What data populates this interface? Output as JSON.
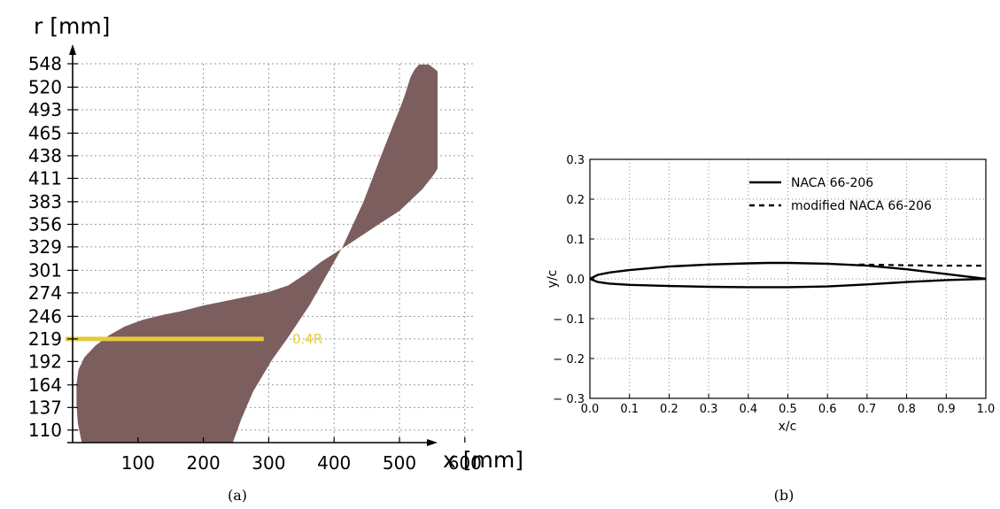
{
  "chart_data": [
    {
      "panel": "(a)",
      "type": "area",
      "xlabel": "x [mm]",
      "ylabel": "r [mm]",
      "xlim": [
        -35,
        660
      ],
      "ylim": [
        95,
        548
      ],
      "xticks": [
        100,
        200,
        300,
        400,
        500,
        600
      ],
      "yticks": [
        110,
        137,
        164,
        192,
        219,
        246,
        274,
        301,
        329,
        356,
        383,
        411,
        438,
        465,
        493,
        520,
        548
      ],
      "grid": true,
      "fill_color": "#7b5e5d",
      "highlight_color": "#e7c93c",
      "annotation": {
        "label": "0.4R",
        "r": 219,
        "x_start": 0,
        "x_end": 390
      },
      "outline": [
        [
          245,
          95
        ],
        [
          258,
          123
        ],
        [
          276,
          156
        ],
        [
          305,
          194
        ],
        [
          328,
          219
        ],
        [
          363,
          260
        ],
        [
          413,
          329
        ],
        [
          445,
          383
        ],
        [
          472,
          438
        ],
        [
          490,
          474
        ],
        [
          500,
          493
        ],
        [
          508,
          510
        ],
        [
          517,
          532
        ],
        [
          523,
          541
        ],
        [
          530,
          547
        ],
        [
          545,
          547
        ],
        [
          557,
          540
        ],
        [
          568,
          528
        ],
        [
          575,
          516
        ],
        [
          580,
          505
        ],
        [
          583,
          493
        ],
        [
          584,
          480
        ],
        [
          583,
          465
        ],
        [
          577,
          449
        ],
        [
          567,
          433
        ],
        [
          552,
          415
        ],
        [
          535,
          398
        ],
        [
          500,
          372
        ],
        [
          470,
          357
        ],
        [
          420,
          331
        ],
        [
          380,
          311
        ],
        [
          355,
          296
        ],
        [
          330,
          283
        ],
        [
          300,
          275
        ],
        [
          275,
          271
        ],
        [
          245,
          266
        ],
        [
          200,
          259
        ],
        [
          165,
          252
        ],
        [
          140,
          248
        ],
        [
          108,
          242
        ],
        [
          80,
          234
        ],
        [
          55,
          223
        ],
        [
          35,
          211
        ],
        [
          18,
          197
        ],
        [
          9,
          182
        ],
        [
          6,
          165
        ],
        [
          6,
          140
        ],
        [
          8,
          118
        ],
        [
          14,
          95
        ]
      ]
    },
    {
      "panel": "(b)",
      "type": "line",
      "xlabel": "x/c",
      "ylabel": "y/c",
      "xlim": [
        0.0,
        1.0
      ],
      "ylim": [
        -0.3,
        0.3
      ],
      "xticks": [
        "0.0",
        "0.1",
        "0.2",
        "0.3",
        "0.4",
        "0.5",
        "0.6",
        "0.7",
        "0.8",
        "0.9",
        "1.0"
      ],
      "yticks": [
        "0.3",
        "0.2",
        "0.1",
        "0.0",
        "− 0.1",
        "− 0.2",
        "− 0.3"
      ],
      "grid": true,
      "legend_position": "top-right",
      "series": [
        {
          "name": "NACA 66-206",
          "style": "solid",
          "upper": [
            [
              0.0,
              0.0
            ],
            [
              0.02,
              0.01
            ],
            [
              0.05,
              0.016
            ],
            [
              0.1,
              0.022
            ],
            [
              0.2,
              0.031
            ],
            [
              0.3,
              0.036
            ],
            [
              0.4,
              0.039
            ],
            [
              0.45,
              0.04
            ],
            [
              0.5,
              0.04
            ],
            [
              0.6,
              0.038
            ],
            [
              0.7,
              0.033
            ],
            [
              0.8,
              0.024
            ],
            [
              0.9,
              0.012
            ],
            [
              1.0,
              0.0
            ]
          ],
          "lower": [
            [
              0.0,
              0.0
            ],
            [
              0.02,
              -0.008
            ],
            [
              0.05,
              -0.012
            ],
            [
              0.1,
              -0.015
            ],
            [
              0.2,
              -0.018
            ],
            [
              0.3,
              -0.02
            ],
            [
              0.4,
              -0.021
            ],
            [
              0.5,
              -0.021
            ],
            [
              0.6,
              -0.019
            ],
            [
              0.7,
              -0.014
            ],
            [
              0.8,
              -0.008
            ],
            [
              0.9,
              -0.003
            ],
            [
              1.0,
              0.0
            ]
          ]
        },
        {
          "name": "modified NACA 66-206",
          "style": "dashed",
          "upper": [
            [
              0.68,
              0.036
            ],
            [
              0.75,
              0.035
            ],
            [
              0.8,
              0.034
            ],
            [
              0.9,
              0.033
            ],
            [
              1.0,
              0.033
            ]
          ]
        }
      ]
    }
  ],
  "captions": [
    "(a)",
    "(b)"
  ]
}
